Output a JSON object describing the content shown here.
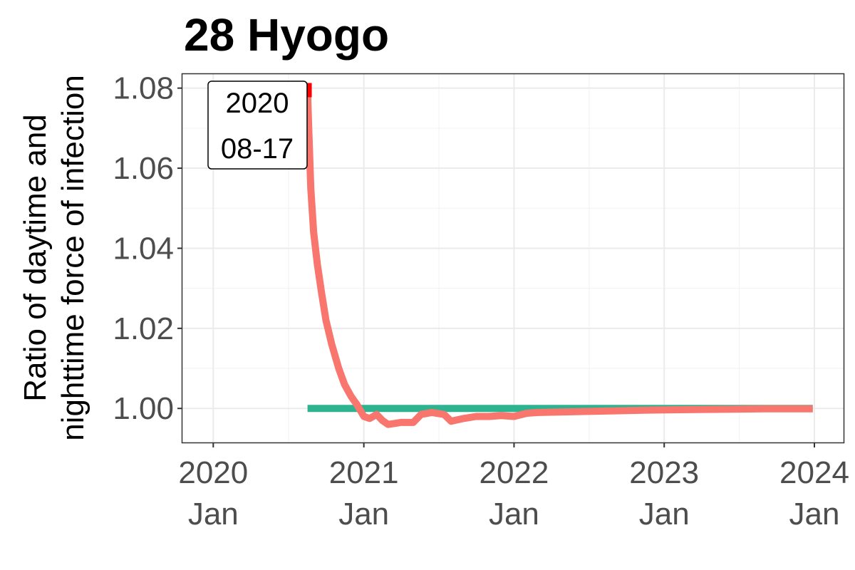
{
  "chart_data": {
    "type": "line",
    "title": "28 Hyogo",
    "xlabel": "",
    "ylabel_lines": [
      "Ratio of daytime and",
      "nighttime force of infection"
    ],
    "xlim": [
      "2019-10-18",
      "2024-03-12"
    ],
    "ylim": [
      0.9915,
      1.0835
    ],
    "grid": true,
    "legend": "none",
    "x_ticks": [
      {
        "date": "2020-01-01",
        "year": "2020",
        "month": "Jan"
      },
      {
        "date": "2021-01-01",
        "year": "2021",
        "month": "Jan"
      },
      {
        "date": "2022-01-01",
        "year": "2022",
        "month": "Jan"
      },
      {
        "date": "2023-01-01",
        "year": "2023",
        "month": "Jan"
      },
      {
        "date": "2024-01-01",
        "year": "2024",
        "month": "Jan"
      }
    ],
    "y_ticks": [
      "1.00",
      "1.02",
      "1.04",
      "1.06",
      "1.08"
    ],
    "annotation": {
      "lines": [
        "2020",
        "08-17"
      ],
      "date": "2020-08-17",
      "value": 1.0795
    },
    "series": [
      {
        "color": "#f8766d",
        "points": [
          [
            "2020-08-17",
            1.0795
          ],
          [
            "2020-08-20",
            1.07
          ],
          [
            "2020-08-25",
            1.055
          ],
          [
            "2020-09-01",
            1.044
          ],
          [
            "2020-09-10",
            1.036
          ],
          [
            "2020-09-20",
            1.029
          ],
          [
            "2020-10-01",
            1.022
          ],
          [
            "2020-10-15",
            1.016
          ],
          [
            "2020-11-01",
            1.01
          ],
          [
            "2020-11-15",
            1.006
          ],
          [
            "2020-12-01",
            1.003
          ],
          [
            "2020-12-15",
            1.001
          ],
          [
            "2021-01-01",
            0.998
          ],
          [
            "2021-01-15",
            0.9975
          ],
          [
            "2021-02-01",
            0.9985
          ],
          [
            "2021-02-15",
            0.997
          ],
          [
            "2021-03-01",
            0.996
          ],
          [
            "2021-04-01",
            0.9965
          ],
          [
            "2021-05-01",
            0.9965
          ],
          [
            "2021-05-20",
            0.9985
          ],
          [
            "2021-06-15",
            0.999
          ],
          [
            "2021-07-15",
            0.9985
          ],
          [
            "2021-08-01",
            0.9968
          ],
          [
            "2021-09-01",
            0.9975
          ],
          [
            "2021-10-01",
            0.998
          ],
          [
            "2021-11-01",
            0.998
          ],
          [
            "2021-12-01",
            0.9982
          ],
          [
            "2022-01-01",
            0.998
          ],
          [
            "2022-02-01",
            0.9988
          ],
          [
            "2022-03-01",
            0.999
          ],
          [
            "2022-06-01",
            0.9992
          ],
          [
            "2022-09-01",
            0.9994
          ],
          [
            "2022-12-01",
            0.9996
          ],
          [
            "2023-03-01",
            0.9997
          ],
          [
            "2023-06-01",
            0.9998
          ],
          [
            "2023-09-01",
            0.9999
          ],
          [
            "2023-12-28",
            0.9999
          ]
        ]
      },
      {
        "color": "#2db38f",
        "points": [
          [
            "2020-08-17",
            1.0
          ],
          [
            "2023-12-28",
            1.0
          ]
        ]
      }
    ],
    "highlight_point": {
      "date": "2020-08-17",
      "value": 1.0795,
      "color": "#ff0000"
    }
  }
}
